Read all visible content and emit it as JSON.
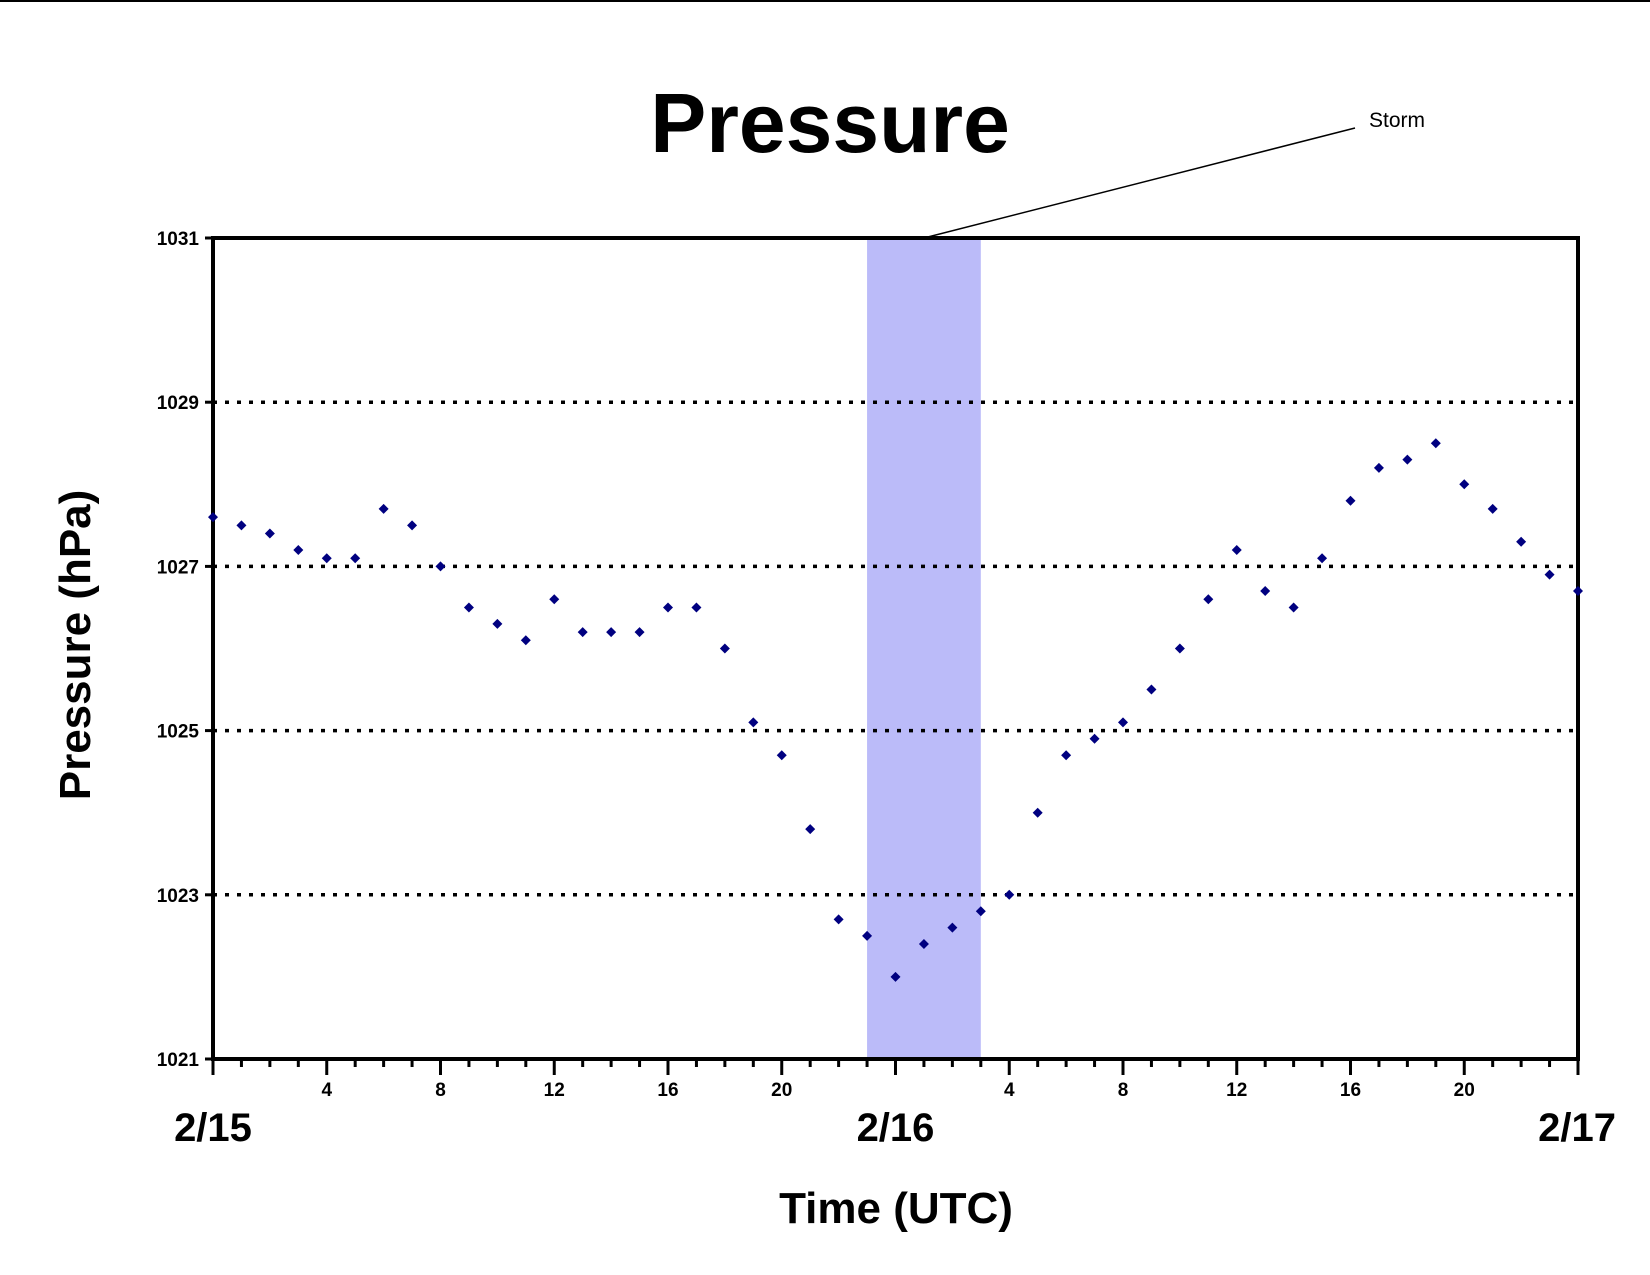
{
  "chart_data": {
    "type": "scatter",
    "title": "Pressure",
    "xlabel": "Time (UTC)",
    "ylabel": "Pressure (hPa)",
    "ylim": [
      1021,
      1031
    ],
    "yticks": [
      "1021",
      "1023",
      "1025",
      "1027",
      "1029",
      "1031"
    ],
    "xlim_hours": [
      0,
      48
    ],
    "xtick_labels": [
      {
        "hour": 4,
        "label": "4"
      },
      {
        "hour": 8,
        "label": "8"
      },
      {
        "hour": 12,
        "label": "12"
      },
      {
        "hour": 16,
        "label": "16"
      },
      {
        "hour": 20,
        "label": "20"
      },
      {
        "hour": 28,
        "label": "4"
      },
      {
        "hour": 32,
        "label": "8"
      },
      {
        "hour": 36,
        "label": "12"
      },
      {
        "hour": 40,
        "label": "16"
      },
      {
        "hour": 44,
        "label": "20"
      }
    ],
    "date_labels": [
      {
        "hour": 0,
        "label": "2/15"
      },
      {
        "hour": 24,
        "label": "2/16"
      },
      {
        "hour": 48,
        "label": "2/17"
      }
    ],
    "grid": {
      "horizontal": "dotted",
      "levels": [
        1023,
        1025,
        1027,
        1029
      ]
    },
    "highlight": {
      "label": "Storm",
      "x_start": 23,
      "x_end": 27,
      "color": "#bbbbf9"
    },
    "marker_color": "#000080",
    "series": [
      {
        "x": [
          0,
          1,
          2,
          3,
          4,
          5,
          6,
          7,
          8,
          9,
          10,
          11,
          12,
          13,
          14,
          15,
          16,
          17,
          18,
          19,
          20,
          21,
          22,
          23,
          24,
          25,
          26,
          27,
          28,
          29,
          30,
          31,
          32,
          33,
          34,
          35,
          36,
          37,
          38,
          39,
          40,
          41,
          42,
          43,
          44,
          45,
          46,
          47,
          48
        ],
        "values": [
          1027.6,
          1027.5,
          1027.4,
          1027.2,
          1027.1,
          1027.1,
          1027.7,
          1027.5,
          1027.0,
          1026.5,
          1026.3,
          1026.1,
          1026.6,
          1026.2,
          1026.2,
          1026.2,
          1026.5,
          1026.5,
          1026.0,
          1025.1,
          1024.7,
          1023.8,
          1022.7,
          1022.5,
          1022.0,
          1022.4,
          1022.6,
          1022.8,
          1023.0,
          1024.0,
          1024.7,
          1024.9,
          1025.1,
          1025.5,
          1026.0,
          1026.6,
          1027.2,
          1026.7,
          1026.5,
          1027.1,
          1027.8,
          1028.2,
          1028.3,
          1028.5,
          1028.0,
          1027.7,
          1027.3,
          1026.9,
          1026.7
        ]
      }
    ]
  }
}
